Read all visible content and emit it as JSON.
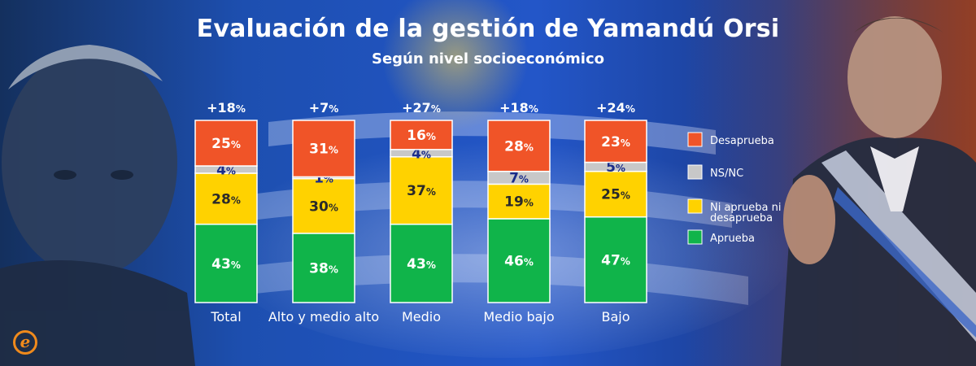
{
  "header": {
    "title": "Evaluación de la gestión de Yamandú Orsi",
    "subtitle": "Según nivel socioeconómico"
  },
  "colors": {
    "Desaprueba": "#f05428",
    "NS/NC": "#c8c8c8",
    "Ni aprueba ni desaprueba": "#ffd200",
    "Aprueba": "#10b44a"
  },
  "logo": {
    "letter": "e",
    "icon": "e-logo-icon"
  },
  "chart_data": {
    "type": "bar",
    "stacked": true,
    "title": "Evaluación de la gestión de Yamandú Orsi",
    "subtitle": "Según nivel socioeconómico",
    "categories": [
      "Total",
      "Alto y medio alto",
      "Medio",
      "Medio bajo",
      "Bajo"
    ],
    "net": [
      "+18",
      "+7",
      "+27",
      "+18",
      "+24"
    ],
    "unit": "%",
    "ylim": [
      0,
      100
    ],
    "grid": false,
    "legend_position": "right",
    "series": [
      {
        "name": "Aprueba",
        "values": [
          43,
          38,
          43,
          46,
          47
        ]
      },
      {
        "name": "Ni aprueba ni desaprueba",
        "values": [
          28,
          30,
          37,
          19,
          25
        ]
      },
      {
        "name": "NS/NC",
        "values": [
          4,
          1,
          4,
          7,
          5
        ]
      },
      {
        "name": "Desaprueba",
        "values": [
          25,
          31,
          16,
          28,
          23
        ]
      }
    ],
    "legend": [
      {
        "series": "Desaprueba",
        "label": "Desaprueba"
      },
      {
        "series": "NS/NC",
        "label": "NS/NC"
      },
      {
        "series": "Ni aprueba ni desaprueba",
        "label": "Ni aprueba ni desaprueba",
        "lines": [
          "Ni aprueba ni",
          "desaprueba"
        ]
      },
      {
        "series": "Aprueba",
        "label": "Aprueba"
      }
    ]
  }
}
